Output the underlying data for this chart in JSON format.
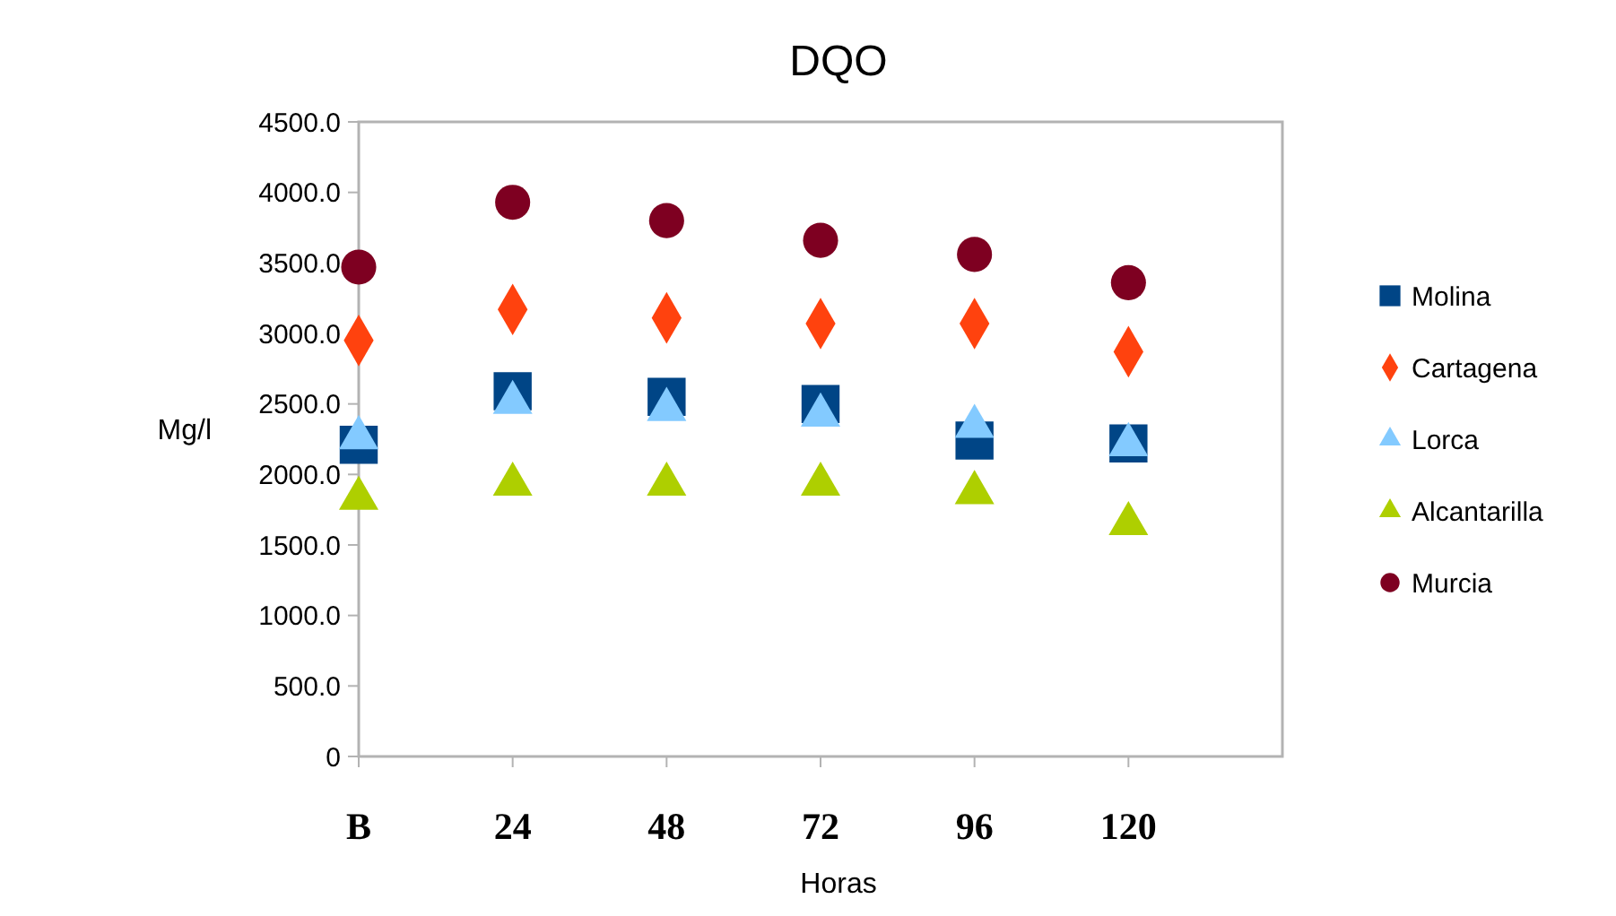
{
  "chart_data": {
    "type": "scatter",
    "title": "DQO",
    "xlabel": "Horas",
    "ylabel": "Mg/l",
    "categories": [
      "B",
      "24",
      "48",
      "72",
      "96",
      "120"
    ],
    "series": [
      {
        "name": "Molina",
        "color": "#004586",
        "marker": "square",
        "values": [
          2210,
          2590,
          2550,
          2500,
          2240,
          2220
        ]
      },
      {
        "name": "Cartagena",
        "color": "#ff420e",
        "marker": "diamond",
        "values": [
          2950,
          3170,
          3110,
          3070,
          3070,
          2870
        ]
      },
      {
        "name": "Lorca",
        "color": "#83caff",
        "marker": "triangle",
        "values": [
          2260,
          2510,
          2460,
          2420,
          2340,
          2210
        ]
      },
      {
        "name": "Alcantarilla",
        "color": "#aecf00",
        "marker": "triangle",
        "values": [
          1830,
          1930,
          1930,
          1930,
          1870,
          1650
        ]
      },
      {
        "name": "Murcia",
        "color": "#7e0021",
        "marker": "circle",
        "values": [
          3470,
          3930,
          3800,
          3660,
          3560,
          3360
        ]
      }
    ],
    "ylim": [
      0,
      4500
    ],
    "yticks": [
      0,
      {
        "value": 500,
        "label": "500.0"
      },
      {
        "value": 1000,
        "label": "1000.0"
      },
      {
        "value": 1500,
        "label": "1500.0"
      },
      {
        "value": 2000,
        "label": "2000.0"
      },
      {
        "value": 2500,
        "label": "2500.0"
      },
      {
        "value": 3000,
        "label": "3000.0"
      },
      {
        "value": 3500,
        "label": "3500.0"
      },
      {
        "value": 4000,
        "label": "4000.0"
      },
      {
        "value": 4500,
        "label": "4500.0"
      }
    ],
    "legend": "right",
    "grid": false
  }
}
